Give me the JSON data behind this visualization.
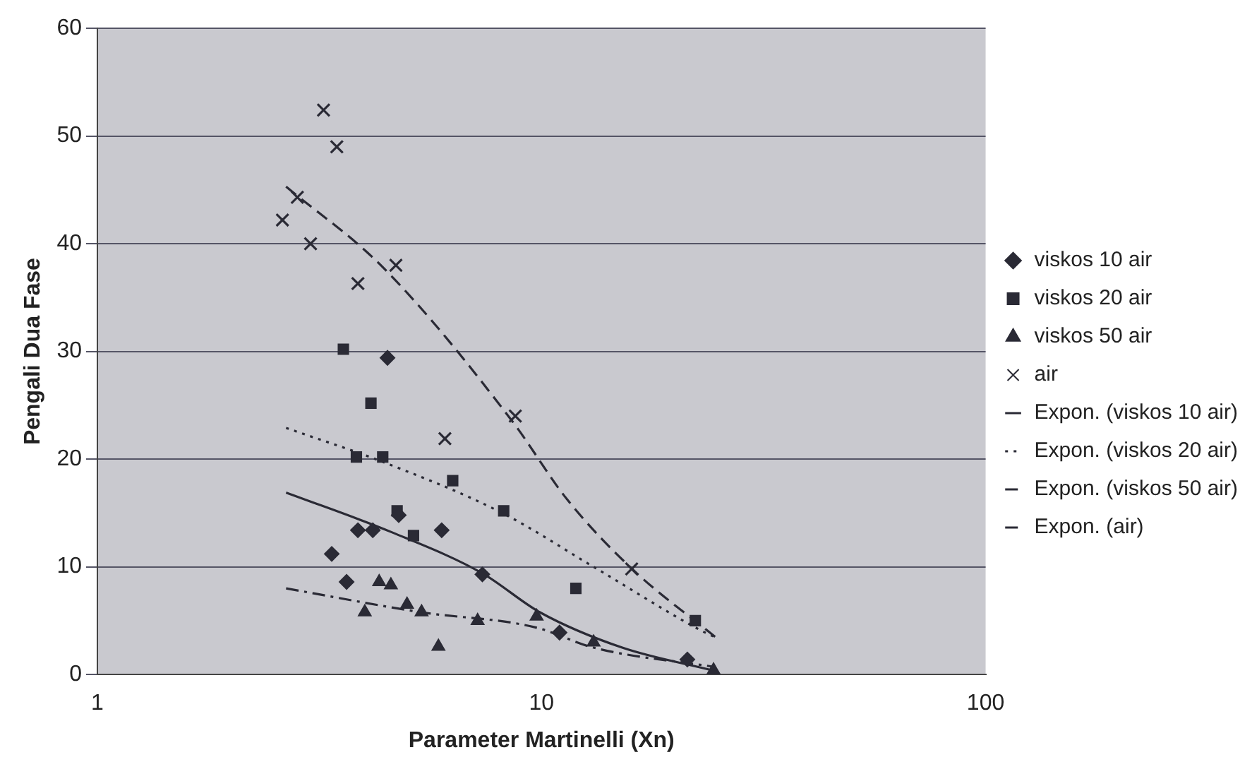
{
  "chart_data": {
    "type": "scatter",
    "xlabel": "Parameter Martinelli (Xn)",
    "ylabel": "Pengali Dua Fase",
    "log": "x",
    "xlim": [
      1,
      100
    ],
    "xticks": [
      1,
      10,
      100
    ],
    "ylim": [
      0,
      60
    ],
    "yticks": [
      0,
      10,
      20,
      30,
      40,
      50,
      60
    ],
    "grid": "y",
    "legend": "right",
    "series": [
      {
        "name": "viskos 10 air",
        "marker": "diamond",
        "color": "#2a2a35",
        "x": [
          4.5,
          3.86,
          4.17,
          3.37,
          3.64,
          4.77,
          5.96,
          7.36,
          10.98,
          21.3
        ],
        "values": [
          29.4,
          13.4,
          13.4,
          11.2,
          8.6,
          14.8,
          13.4,
          9.3,
          3.9,
          1.4
        ]
      },
      {
        "name": "viskos 20 air",
        "marker": "square",
        "color": "#2a2a35",
        "x": [
          3.58,
          4.13,
          3.83,
          4.39,
          6.31,
          4.73,
          5.15,
          8.22,
          11.95,
          22.2
        ],
        "values": [
          30.2,
          25.2,
          20.2,
          20.2,
          18,
          15.2,
          12.9,
          15.2,
          8,
          5
        ]
      },
      {
        "name": "viskos 50 air",
        "marker": "triangle",
        "color": "#2a2a35",
        "x": [
          4,
          4.31,
          4.58,
          4.98,
          5.37,
          5.86,
          7.18,
          9.75,
          13.1,
          24.4
        ],
        "values": [
          5.8,
          8.6,
          8.3,
          6.5,
          5.8,
          2.6,
          5,
          5.4,
          3,
          0.4
        ]
      },
      {
        "name": "air",
        "marker": "cross",
        "color": "#2a2a35",
        "x": [
          3.23,
          3.46,
          2.61,
          2.82,
          3.02,
          3.86,
          4.7,
          6.06,
          8.73,
          15.96
        ],
        "values": [
          52.4,
          49,
          42.2,
          44.3,
          40,
          36.3,
          38,
          21.9,
          24,
          9.8
        ]
      },
      {
        "name": "Expon. (viskos 10 air)",
        "type": "line",
        "marker": "none",
        "line_style": "solid",
        "color": "#2a2a35",
        "x": [
          2.66,
          4.61,
          7.36,
          9.9,
          15.2,
          24.2
        ],
        "values": [
          16.9,
          13.2,
          9.4,
          5.8,
          2.5,
          0.4
        ]
      },
      {
        "name": "Expon. (viskos 20 air)",
        "type": "line",
        "marker": "none",
        "line_style": "dotted",
        "color": "#2a2a35",
        "x": [
          2.66,
          4.42,
          8.16,
          13.1,
          22.6,
          24.5
        ],
        "values": [
          22.9,
          19.7,
          15,
          10,
          4.2,
          3.5
        ]
      },
      {
        "name": "Expon. (viskos 50 air)",
        "type": "line",
        "marker": "none",
        "line_style": "dashdot",
        "color": "#2a2a35",
        "x": [
          2.66,
          5.33,
          9.65,
          13.1,
          24.6
        ],
        "values": [
          8,
          5.8,
          4.4,
          2.5,
          0.7
        ]
      },
      {
        "name": "Expon. (air)",
        "type": "line",
        "marker": "none",
        "line_style": "dashed",
        "color": "#2a2a35",
        "x": [
          2.66,
          4.42,
          8.6,
          11.4,
          16,
          24.6
        ],
        "values": [
          45.3,
          37.7,
          23.5,
          16.3,
          9.8,
          3.5
        ]
      }
    ]
  }
}
